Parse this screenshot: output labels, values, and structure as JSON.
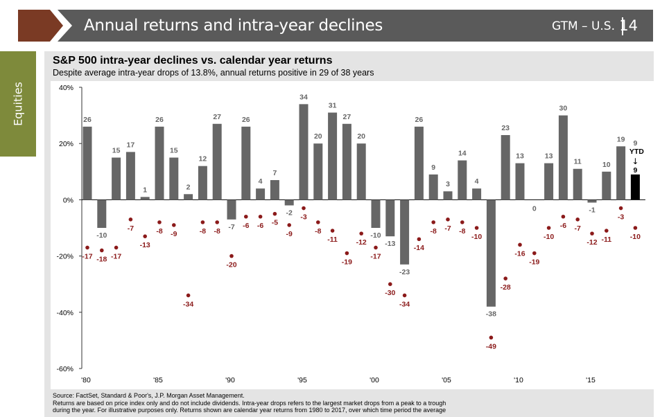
{
  "header": {
    "title": "Annual returns and intra-year declines",
    "gtm": "GTM – U.S.",
    "page_number": "14",
    "colors": {
      "banner": "#5a5a5a",
      "arrow": "#7a3a24",
      "accent": "#7e8a3b"
    }
  },
  "side_tab": {
    "label": "Equities"
  },
  "chart_data": {
    "type": "bar",
    "title": "S&P 500 intra-year declines vs. calendar year returns",
    "subtitle": "Despite average intra-year drops of 13.8%, annual returns positive in 29 of 38 years",
    "x": [
      1980,
      1981,
      1982,
      1983,
      1984,
      1985,
      1986,
      1987,
      1988,
      1989,
      1990,
      1991,
      1992,
      1993,
      1994,
      1995,
      1996,
      1997,
      1998,
      1999,
      2000,
      2001,
      2002,
      2003,
      2004,
      2005,
      2006,
      2007,
      2008,
      2009,
      2010,
      2011,
      2012,
      2013,
      2014,
      2015,
      2016,
      2017,
      2018
    ],
    "x_tick_labels": [
      "'80",
      "'85",
      "'90",
      "'95",
      "'00",
      "'05",
      "'10",
      "'15"
    ],
    "x_tick_years": [
      1980,
      1985,
      1990,
      1995,
      2000,
      2005,
      2010,
      2015
    ],
    "y_ticks": [
      40,
      20,
      0,
      -20,
      -40,
      -60
    ],
    "y_tick_labels": [
      "40%",
      "20%",
      "0%",
      "-20%",
      "-40%",
      "-60%"
    ],
    "ylim": [
      -60,
      40
    ],
    "series": [
      {
        "type": "bar",
        "color": "#666666",
        "values": [
          26,
          -10,
          15,
          17,
          1,
          26,
          15,
          2,
          12,
          27,
          -7,
          26,
          4,
          7,
          -2,
          34,
          20,
          31,
          27,
          20,
          -10,
          -13,
          -23,
          26,
          9,
          3,
          14,
          4,
          -38,
          23,
          13,
          0,
          13,
          30,
          11,
          -1,
          10,
          19,
          9
        ],
        "labels": [
          "26",
          "-10",
          "15",
          "17",
          "1",
          "26",
          "15",
          "2",
          "12",
          "27",
          "-7",
          "26",
          "4",
          "7",
          "-2",
          "34",
          "20",
          "31",
          "27",
          "20",
          "-10",
          "-13",
          "-23",
          "26",
          "9",
          "3",
          "14",
          "4",
          "-38",
          "23",
          "13",
          "0",
          "13",
          "30",
          "11",
          "-1",
          "10",
          "19",
          "9"
        ]
      },
      {
        "type": "scatter",
        "color": "#8b1a1a",
        "values": [
          -17,
          -18,
          -17,
          -7,
          -13,
          -8,
          -9,
          -34,
          -8,
          -8,
          -20,
          -6,
          -6,
          -5,
          -9,
          -3,
          -8,
          -11,
          -19,
          -12,
          -17,
          -30,
          -34,
          -14,
          -8,
          -7,
          -8,
          -10,
          -49,
          -28,
          -16,
          -19,
          -10,
          -6,
          -7,
          -12,
          -11,
          -3,
          -10
        ],
        "labels": [
          "-17",
          "-18",
          "-17",
          "-7",
          "-13",
          "-8",
          "-9",
          "-34",
          "-8",
          "-8",
          "-20",
          "-6",
          "-6",
          "-5",
          "-9",
          "-3",
          "-8",
          "-11",
          "-19",
          "-12",
          "-17",
          "-30",
          "-34",
          "-14",
          "-8",
          "-7",
          "-8",
          "-10",
          "-49",
          "-28",
          "-16",
          "-19",
          "-10",
          "-6",
          "-7",
          "-12",
          "-11",
          "-3",
          "-10"
        ]
      }
    ],
    "highlight": {
      "label": "YTD",
      "arrow": "↓",
      "color": "#000000"
    }
  },
  "source": {
    "lines": [
      "Source: FactSet, Standard & Poor's, J.P. Morgan Asset Management.",
      "Returns are based on price index only and do not include dividends. Intra-year drops refers to the largest market drops from a peak to a trough",
      "during the year. For illustrative purposes only. Returns shown are calendar year returns from 1980 to 2017, over which time period the average"
    ]
  }
}
